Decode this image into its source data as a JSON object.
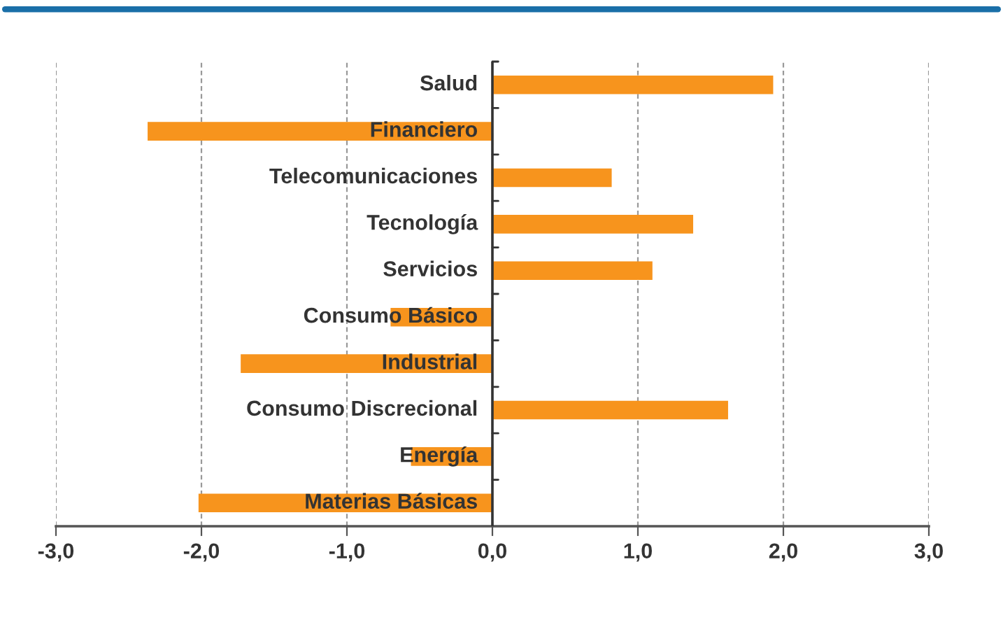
{
  "chart_data": {
    "type": "bar",
    "orientation": "horizontal",
    "categories": [
      "Salud",
      "Financiero",
      "Telecomunicaciones",
      "Tecnología",
      "Servicios",
      "Consumo Básico",
      "Industrial",
      "Consumo Discrecional",
      "Energía",
      "Materias Básicas"
    ],
    "values": [
      1.93,
      -2.37,
      0.82,
      1.38,
      1.1,
      -0.7,
      -1.73,
      1.62,
      -0.56,
      -2.02
    ],
    "color": "#f7941d",
    "xlim": [
      -3,
      3
    ],
    "xticks": [
      {
        "value": -3,
        "label": "-3,0"
      },
      {
        "value": -2,
        "label": "-2,0"
      },
      {
        "value": -1,
        "label": "-1,0"
      },
      {
        "value": 0,
        "label": "0,0"
      },
      {
        "value": 1,
        "label": "1,0"
      },
      {
        "value": 2,
        "label": "2,0"
      },
      {
        "value": 3,
        "label": "3,0"
      }
    ],
    "grid": "x"
  }
}
